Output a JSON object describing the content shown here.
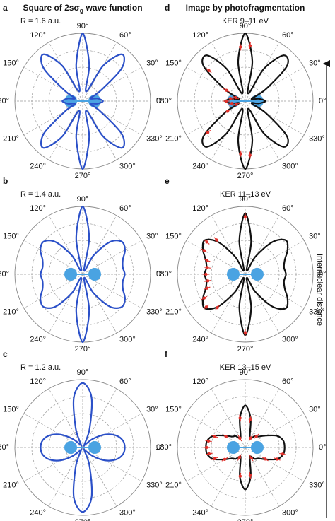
{
  "side_label": "Internuclear distance",
  "chart_data": [
    {
      "type": "polar",
      "panel_label": "a",
      "title": "Square of 2sσ",
      "title_subscript": "g",
      "title_end": " wave function",
      "subtitle": "R = 1.6 a.u.",
      "color": "#2b50c8",
      "theta": [
        0,
        10,
        20,
        30,
        40,
        50,
        60,
        70,
        80,
        90,
        100,
        110,
        120,
        130,
        140,
        150,
        160,
        170,
        180,
        190,
        200,
        210,
        220,
        230,
        240,
        250,
        260,
        270,
        280,
        290,
        300,
        310,
        320,
        330,
        340,
        350
      ],
      "r": [
        0.3,
        0.22,
        0.12,
        0.3,
        0.75,
        0.9,
        0.6,
        0.15,
        0.55,
        1.0,
        0.55,
        0.15,
        0.6,
        0.9,
        0.75,
        0.3,
        0.12,
        0.22,
        0.3,
        0.22,
        0.12,
        0.3,
        0.75,
        0.9,
        0.6,
        0.15,
        0.55,
        1.0,
        0.55,
        0.15,
        0.6,
        0.9,
        0.75,
        0.3,
        0.12,
        0.22
      ],
      "rlim": [
        0,
        1
      ],
      "rticks": [
        0.25,
        0.5,
        0.75,
        1
      ],
      "thetaticks": [
        {
          "value": 0,
          "label": "0°"
        },
        {
          "value": 30,
          "label": "30°"
        },
        {
          "value": 60,
          "label": "60°"
        },
        {
          "value": 90,
          "label": "90°"
        },
        {
          "value": 120,
          "label": "120°"
        },
        {
          "value": 150,
          "label": "150°"
        },
        {
          "value": 180,
          "label": "180°"
        },
        {
          "value": 210,
          "label": "210°"
        },
        {
          "value": 240,
          "label": "240°"
        },
        {
          "value": 270,
          "label": "270°"
        },
        {
          "value": 300,
          "label": "300°"
        },
        {
          "value": 330,
          "label": "330°"
        }
      ]
    },
    {
      "type": "polar",
      "panel_label": "b",
      "subtitle": "R = 1.4 a.u.",
      "color": "#2b50c8",
      "theta": [
        0,
        10,
        20,
        30,
        40,
        50,
        60,
        70,
        80,
        90,
        100,
        110,
        120,
        130,
        140,
        150,
        160,
        170,
        180,
        190,
        200,
        210,
        220,
        230,
        240,
        250,
        260,
        270,
        280,
        290,
        300,
        310,
        320,
        330,
        340,
        350
      ],
      "r": [
        0.62,
        0.6,
        0.63,
        0.72,
        0.75,
        0.62,
        0.32,
        0.06,
        0.55,
        1.0,
        0.55,
        0.06,
        0.32,
        0.62,
        0.75,
        0.72,
        0.63,
        0.6,
        0.62,
        0.6,
        0.63,
        0.72,
        0.75,
        0.62,
        0.32,
        0.06,
        0.55,
        1.0,
        0.55,
        0.06,
        0.32,
        0.62,
        0.75,
        0.72,
        0.63,
        0.6
      ],
      "rlim": [
        0,
        1
      ],
      "rticks": [
        0.25,
        0.5,
        0.75,
        1
      ],
      "thetaticks": [
        {
          "value": 0,
          "label": "0°"
        },
        {
          "value": 30,
          "label": "30°"
        },
        {
          "value": 60,
          "label": "60°"
        },
        {
          "value": 90,
          "label": "90°"
        },
        {
          "value": 120,
          "label": "120°"
        },
        {
          "value": 150,
          "label": "150°"
        },
        {
          "value": 180,
          "label": "180°"
        },
        {
          "value": 210,
          "label": "210°"
        },
        {
          "value": 240,
          "label": "240°"
        },
        {
          "value": 270,
          "label": "270°"
        },
        {
          "value": 300,
          "label": "300°"
        },
        {
          "value": 330,
          "label": "330°"
        }
      ]
    },
    {
      "type": "polar",
      "panel_label": "c",
      "subtitle": "R = 1.2 a.u.",
      "color": "#2b50c8",
      "theta": [
        0,
        10,
        20,
        30,
        40,
        50,
        60,
        70,
        80,
        90,
        100,
        110,
        120,
        130,
        140,
        150,
        160,
        170,
        180,
        190,
        200,
        210,
        220,
        230,
        240,
        250,
        260,
        270,
        280,
        290,
        300,
        310,
        320,
        330,
        340,
        350
      ],
      "r": [
        0.62,
        0.6,
        0.52,
        0.38,
        0.2,
        0.06,
        0.05,
        0.3,
        0.75,
        0.95,
        0.75,
        0.3,
        0.05,
        0.06,
        0.2,
        0.38,
        0.52,
        0.6,
        0.62,
        0.6,
        0.52,
        0.38,
        0.2,
        0.06,
        0.05,
        0.3,
        0.75,
        0.95,
        0.75,
        0.3,
        0.05,
        0.06,
        0.2,
        0.38,
        0.52,
        0.6
      ],
      "rlim": [
        0,
        1
      ],
      "rticks": [
        0.25,
        0.5,
        0.75,
        1
      ],
      "thetaticks": [
        {
          "value": 0,
          "label": "0°"
        },
        {
          "value": 30,
          "label": "30°"
        },
        {
          "value": 60,
          "label": "60°"
        },
        {
          "value": 90,
          "label": "90°"
        },
        {
          "value": 120,
          "label": "120°"
        },
        {
          "value": 150,
          "label": "150°"
        },
        {
          "value": 180,
          "label": "180°"
        },
        {
          "value": 210,
          "label": "210°"
        },
        {
          "value": 240,
          "label": "240°"
        },
        {
          "value": 270,
          "label": "270°"
        },
        {
          "value": 300,
          "label": "300°"
        },
        {
          "value": 330,
          "label": "330°"
        }
      ]
    },
    {
      "type": "polar",
      "panel_label": "d",
      "title": "Image by photofragmentation",
      "subtitle": "KER 9–11 eV",
      "color": "#111111",
      "point_color": "#e0302a",
      "theta": [
        0,
        10,
        20,
        30,
        40,
        50,
        60,
        70,
        80,
        90,
        100,
        110,
        120,
        130,
        140,
        150,
        160,
        170,
        180,
        190,
        200,
        210,
        220,
        230,
        240,
        250,
        260,
        270,
        280,
        290,
        300,
        310,
        320,
        330,
        340,
        350
      ],
      "r": [
        0.3,
        0.2,
        0.1,
        0.35,
        0.8,
        0.88,
        0.55,
        0.12,
        0.6,
        1.0,
        0.6,
        0.12,
        0.55,
        0.88,
        0.8,
        0.35,
        0.1,
        0.2,
        0.3,
        0.2,
        0.1,
        0.35,
        0.8,
        0.88,
        0.55,
        0.12,
        0.6,
        1.0,
        0.6,
        0.12,
        0.55,
        0.88,
        0.8,
        0.35,
        0.1,
        0.2
      ],
      "points": {
        "theta": [
          85,
          95,
          140,
          150,
          160,
          170,
          180,
          190,
          200,
          210,
          220,
          265,
          275
        ],
        "r": [
          0.82,
          0.8,
          0.7,
          0.32,
          0.15,
          0.22,
          0.28,
          0.2,
          0.14,
          0.3,
          0.72,
          0.78,
          0.8
        ],
        "err": [
          0.05,
          0.05,
          0.05,
          0.05,
          0.05,
          0.05,
          0.05,
          0.05,
          0.05,
          0.05,
          0.05,
          0.05,
          0.05
        ]
      },
      "rlim": [
        0,
        1
      ],
      "rticks": [
        0.25,
        0.5,
        0.75,
        1
      ],
      "thetaticks": [
        {
          "value": 0,
          "label": "0°"
        },
        {
          "value": 30,
          "label": "30°"
        },
        {
          "value": 60,
          "label": "60°"
        },
        {
          "value": 90,
          "label": "90°"
        },
        {
          "value": 120,
          "label": "120°"
        },
        {
          "value": 150,
          "label": "150°"
        },
        {
          "value": 180,
          "label": "180°"
        },
        {
          "value": 210,
          "label": "210°"
        },
        {
          "value": 240,
          "label": "240°"
        },
        {
          "value": 270,
          "label": "270°"
        },
        {
          "value": 300,
          "label": "300°"
        },
        {
          "value": 330,
          "label": "330°"
        }
      ]
    },
    {
      "type": "polar",
      "panel_label": "e",
      "subtitle": "KER 11–13 eV",
      "color": "#111111",
      "point_color": "#e0302a",
      "theta": [
        0,
        10,
        20,
        30,
        40,
        50,
        60,
        70,
        80,
        90,
        100,
        110,
        120,
        130,
        140,
        150,
        160,
        170,
        180,
        190,
        200,
        210,
        220,
        230,
        240,
        250,
        260,
        270,
        280,
        290,
        300,
        310,
        320,
        330,
        340,
        350
      ],
      "r": [
        0.6,
        0.58,
        0.62,
        0.72,
        0.78,
        0.62,
        0.3,
        0.06,
        0.5,
        0.9,
        0.5,
        0.06,
        0.3,
        0.62,
        0.78,
        0.72,
        0.62,
        0.58,
        0.6,
        0.58,
        0.62,
        0.72,
        0.78,
        0.62,
        0.3,
        0.06,
        0.5,
        0.9,
        0.5,
        0.06,
        0.3,
        0.62,
        0.78,
        0.72,
        0.62,
        0.58
      ],
      "points": {
        "theta": [
          90,
          130,
          140,
          150,
          160,
          170,
          180,
          190,
          200,
          210,
          220,
          230,
          270
        ],
        "r": [
          0.85,
          0.66,
          0.74,
          0.7,
          0.6,
          0.57,
          0.58,
          0.56,
          0.6,
          0.7,
          0.75,
          0.64,
          0.86
        ],
        "err": [
          0.05,
          0.05,
          0.05,
          0.05,
          0.05,
          0.05,
          0.05,
          0.05,
          0.05,
          0.05,
          0.05,
          0.05,
          0.05
        ]
      },
      "rlim": [
        0,
        1
      ],
      "rticks": [
        0.25,
        0.5,
        0.75,
        1
      ],
      "thetaticks": [
        {
          "value": 0,
          "label": "0°"
        },
        {
          "value": 30,
          "label": "30°"
        },
        {
          "value": 60,
          "label": "60°"
        },
        {
          "value": 90,
          "label": "90°"
        },
        {
          "value": 120,
          "label": "120°"
        },
        {
          "value": 150,
          "label": "150°"
        },
        {
          "value": 180,
          "label": "180°"
        },
        {
          "value": 210,
          "label": "210°"
        },
        {
          "value": 240,
          "label": "240°"
        },
        {
          "value": 270,
          "label": "270°"
        },
        {
          "value": 300,
          "label": "300°"
        },
        {
          "value": 330,
          "label": "330°"
        }
      ]
    },
    {
      "type": "polar",
      "panel_label": "f",
      "subtitle": "KER 13–15 eV",
      "color": "#111111",
      "point_color": "#e0302a",
      "theta": [
        0,
        10,
        20,
        30,
        40,
        50,
        60,
        70,
        80,
        90,
        100,
        110,
        120,
        130,
        140,
        150,
        160,
        170,
        180,
        190,
        200,
        210,
        220,
        230,
        240,
        250,
        260,
        270,
        280,
        290,
        300,
        310,
        320,
        330,
        340,
        350
      ],
      "r": [
        0.58,
        0.57,
        0.5,
        0.35,
        0.25,
        0.22,
        0.15,
        0.2,
        0.45,
        0.62,
        0.45,
        0.2,
        0.15,
        0.22,
        0.25,
        0.35,
        0.5,
        0.57,
        0.58,
        0.57,
        0.5,
        0.35,
        0.25,
        0.22,
        0.15,
        0.2,
        0.45,
        0.62,
        0.45,
        0.2,
        0.15,
        0.22,
        0.25,
        0.35,
        0.5,
        0.57
      ],
      "points": {
        "theta": [
          45,
          60,
          80,
          100,
          120,
          150,
          160,
          170,
          180,
          190,
          200,
          210,
          240,
          260,
          280,
          300,
          330,
          340,
          350
        ],
        "r": [
          0.23,
          0.16,
          0.42,
          0.44,
          0.16,
          0.33,
          0.48,
          0.55,
          0.57,
          0.54,
          0.48,
          0.35,
          0.17,
          0.43,
          0.42,
          0.18,
          0.34,
          0.5,
          0.56
        ],
        "err": [
          0.05,
          0.05,
          0.05,
          0.05,
          0.05,
          0.05,
          0.05,
          0.05,
          0.05,
          0.05,
          0.05,
          0.05,
          0.05,
          0.05,
          0.05,
          0.05,
          0.05,
          0.05,
          0.05
        ]
      },
      "rlim": [
        0,
        1
      ],
      "rticks": [
        0.25,
        0.5,
        0.75,
        1
      ],
      "thetaticks": [
        {
          "value": 0,
          "label": "0°"
        },
        {
          "value": 30,
          "label": "30°"
        },
        {
          "value": 60,
          "label": "60°"
        },
        {
          "value": 90,
          "label": "90°"
        },
        {
          "value": 120,
          "label": "120°"
        },
        {
          "value": 150,
          "label": "150°"
        },
        {
          "value": 180,
          "label": "180°"
        },
        {
          "value": 210,
          "label": "210°"
        },
        {
          "value": 240,
          "label": "240°"
        },
        {
          "value": 270,
          "label": "270°"
        },
        {
          "value": 300,
          "label": "300°"
        },
        {
          "value": 330,
          "label": "330°"
        }
      ]
    }
  ]
}
